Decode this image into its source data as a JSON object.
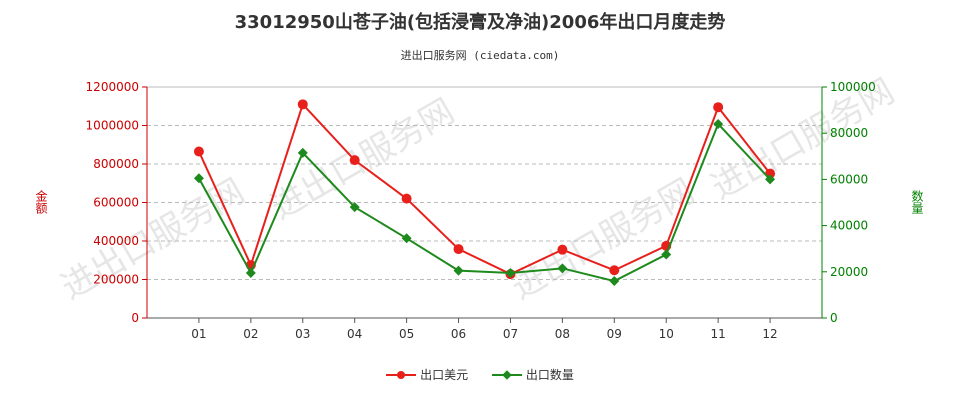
{
  "title": "33012950山苍子油(包括浸膏及净油)2006年出口月度走势",
  "subtitle": "进出口服务网 (ciedata.com)",
  "watermark": "进出口服务网",
  "colors": {
    "series_usd": "#e8201c",
    "series_qty": "#1e8a1e",
    "axis_left": "#cc0000",
    "axis_right": "#008000"
  },
  "chart_data": {
    "type": "line",
    "categories": [
      "01",
      "02",
      "03",
      "04",
      "05",
      "06",
      "07",
      "08",
      "09",
      "10",
      "11",
      "12"
    ],
    "series": [
      {
        "name": "出口美元",
        "axis": "left",
        "marker": "circle",
        "values": [
          865000,
          275000,
          1110000,
          820000,
          620000,
          358000,
          228000,
          355000,
          248000,
          375000,
          1095000,
          750000
        ]
      },
      {
        "name": "出口数量",
        "axis": "right",
        "marker": "diamond",
        "values": [
          60500,
          19500,
          71500,
          48000,
          34500,
          20500,
          19500,
          21500,
          16000,
          27500,
          84000,
          60000
        ]
      }
    ],
    "y_left": {
      "label": "金额",
      "lim": [
        0,
        1200000
      ],
      "ticks": [
        "0",
        "200000",
        "400000",
        "600000",
        "800000",
        "1000000",
        "1200000"
      ]
    },
    "y_right": {
      "label": "数量",
      "lim": [
        0,
        100000
      ],
      "ticks": [
        "0",
        "20000",
        "40000",
        "60000",
        "80000",
        "100000"
      ]
    },
    "grid": true,
    "legend_position": "bottom"
  }
}
